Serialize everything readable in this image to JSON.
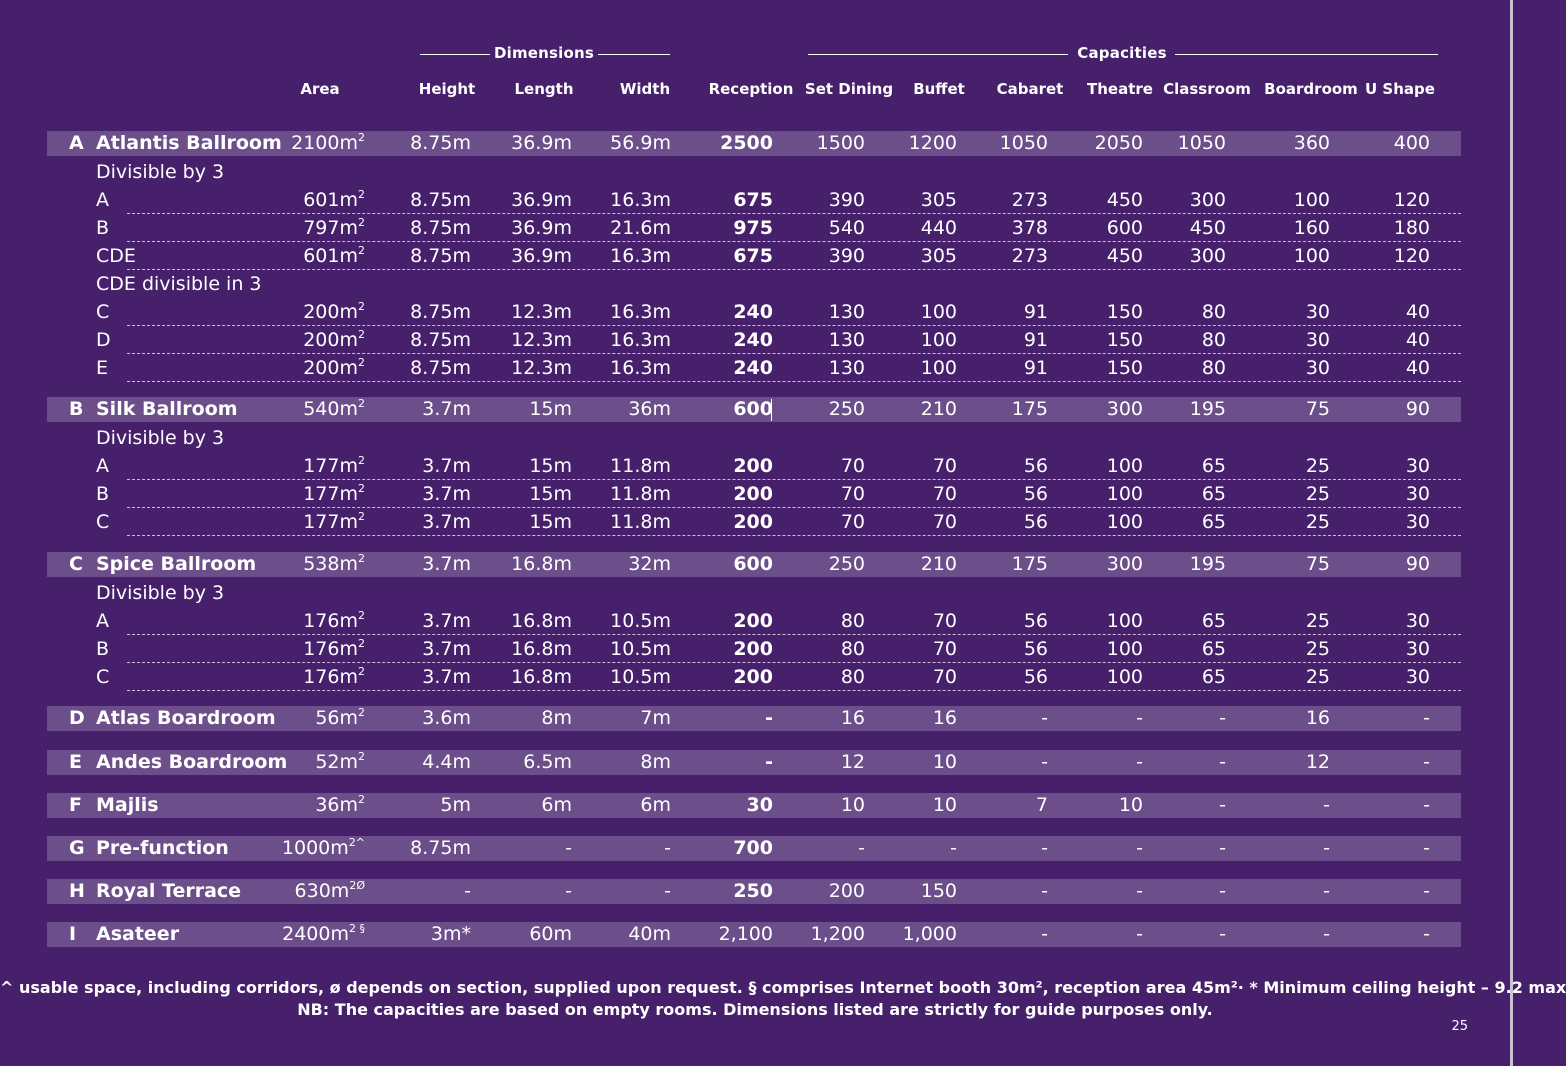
{
  "groups": {
    "dimensions": "Dimensions",
    "capacities": "Capacities"
  },
  "headers": [
    "Area",
    "Height",
    "Length",
    "Width",
    "Reception",
    "Set Dining",
    "Buffet",
    "Cabaret",
    "Theatre",
    "Classroom",
    "Boardroom",
    "U Shape"
  ],
  "rows": [
    {
      "type": "main",
      "letter": "A",
      "name": "Atlantis Ballroom",
      "area": "2100m",
      "area_sup": "2",
      "cells": [
        "8.75m",
        "36.9m",
        "56.9m",
        "2500",
        "1500",
        "1200",
        "1050",
        "2050",
        "1050",
        "360",
        "400"
      ]
    },
    {
      "type": "sub",
      "letter": "",
      "name": "Divisible by 3",
      "area": "",
      "area_sup": "",
      "cells": [
        "",
        "",
        "",
        "",
        "",
        "",
        "",
        "",
        "",
        "",
        ""
      ]
    },
    {
      "type": "sub",
      "letter": "",
      "name": "A",
      "area": "601m",
      "area_sup": "2",
      "cells": [
        "8.75m",
        "36.9m",
        "16.3m",
        "675",
        "390",
        "305",
        "273",
        "450",
        "300",
        "100",
        "120"
      ]
    },
    {
      "type": "sub",
      "letter": "",
      "name": "B",
      "area": "797m",
      "area_sup": "2",
      "cells": [
        "8.75m",
        "36.9m",
        "21.6m",
        "975",
        "540",
        "440",
        "378",
        "600",
        "450",
        "160",
        "180"
      ]
    },
    {
      "type": "sub",
      "letter": "",
      "name": "CDE",
      "area": "601m",
      "area_sup": "2",
      "cells": [
        "8.75m",
        "36.9m",
        "16.3m",
        "675",
        "390",
        "305",
        "273",
        "450",
        "300",
        "100",
        "120"
      ]
    },
    {
      "type": "sub",
      "letter": "",
      "name": "CDE divisible in 3",
      "area": "",
      "area_sup": "",
      "cells": [
        "",
        "",
        "",
        "",
        "",
        "",
        "",
        "",
        "",
        "",
        ""
      ]
    },
    {
      "type": "sub",
      "letter": "",
      "name": "C",
      "area": "200m",
      "area_sup": "2",
      "cells": [
        "8.75m",
        "12.3m",
        "16.3m",
        "240",
        "130",
        "100",
        "91",
        "150",
        "80",
        "30",
        "40"
      ]
    },
    {
      "type": "sub",
      "letter": "",
      "name": "D",
      "area": "200m",
      "area_sup": "2",
      "cells": [
        "8.75m",
        "12.3m",
        "16.3m",
        "240",
        "130",
        "100",
        "91",
        "150",
        "80",
        "30",
        "40"
      ]
    },
    {
      "type": "sub",
      "letter": "",
      "name": "E",
      "area": "200m",
      "area_sup": "2",
      "cells": [
        "8.75m",
        "12.3m",
        "16.3m",
        "240",
        "130",
        "100",
        "91",
        "150",
        "80",
        "30",
        "40"
      ]
    },
    {
      "type": "main",
      "letter": "B",
      "name": "Silk Ballroom",
      "area": "540m",
      "area_sup": "2",
      "cells": [
        "3.7m",
        "15m",
        "36m",
        "600",
        "250",
        "210",
        "175",
        "300",
        "195",
        "75",
        "90"
      ]
    },
    {
      "type": "sub",
      "letter": "",
      "name": "Divisible by 3",
      "area": "",
      "area_sup": "",
      "cells": [
        "",
        "",
        "",
        "",
        "",
        "",
        "",
        "",
        "",
        "",
        ""
      ]
    },
    {
      "type": "sub",
      "letter": "",
      "name": "A",
      "area": "177m",
      "area_sup": "2",
      "cells": [
        "3.7m",
        "15m",
        "11.8m",
        "200",
        "70",
        "70",
        "56",
        "100",
        "65",
        "25",
        "30"
      ]
    },
    {
      "type": "sub",
      "letter": "",
      "name": "B",
      "area": "177m",
      "area_sup": "2",
      "cells": [
        "3.7m",
        "15m",
        "11.8m",
        "200",
        "70",
        "70",
        "56",
        "100",
        "65",
        "25",
        "30"
      ]
    },
    {
      "type": "sub",
      "letter": "",
      "name": "C",
      "area": "177m",
      "area_sup": "2",
      "cells": [
        "3.7m",
        "15m",
        "11.8m",
        "200",
        "70",
        "70",
        "56",
        "100",
        "65",
        "25",
        "30"
      ]
    },
    {
      "type": "main",
      "letter": "C",
      "name": "Spice Ballroom",
      "area": "538m",
      "area_sup": "2",
      "cells": [
        "3.7m",
        "16.8m",
        "32m",
        "600",
        "250",
        "210",
        "175",
        "300",
        "195",
        "75",
        "90"
      ]
    },
    {
      "type": "sub",
      "letter": "",
      "name": "Divisible by 3",
      "area": "",
      "area_sup": "",
      "cells": [
        "",
        "",
        "",
        "",
        "",
        "",
        "",
        "",
        "",
        "",
        ""
      ]
    },
    {
      "type": "sub",
      "letter": "",
      "name": "A",
      "area": "176m",
      "area_sup": "2",
      "cells": [
        "3.7m",
        "16.8m",
        "10.5m",
        "200",
        "80",
        "70",
        "56",
        "100",
        "65",
        "25",
        "30"
      ]
    },
    {
      "type": "sub",
      "letter": "",
      "name": "B",
      "area": "176m",
      "area_sup": "2",
      "cells": [
        "3.7m",
        "16.8m",
        "10.5m",
        "200",
        "80",
        "70",
        "56",
        "100",
        "65",
        "25",
        "30"
      ]
    },
    {
      "type": "sub",
      "letter": "",
      "name": "C",
      "area": "176m",
      "area_sup": "2",
      "cells": [
        "3.7m",
        "16.8m",
        "10.5m",
        "200",
        "80",
        "70",
        "56",
        "100",
        "65",
        "25",
        "30"
      ]
    },
    {
      "type": "main",
      "letter": "D",
      "name": "Atlas Boardroom",
      "area": "56m",
      "area_sup": "2",
      "cells": [
        "3.6m",
        "8m",
        "7m",
        "-",
        "16",
        "16",
        "-",
        "-",
        "-",
        "16",
        "-"
      ]
    },
    {
      "type": "main",
      "letter": "E",
      "name": "Andes Boardroom",
      "area": "52m",
      "area_sup": "2",
      "cells": [
        "4.4m",
        "6.5m",
        "8m",
        "-",
        "12",
        "10",
        "-",
        "-",
        "-",
        "12",
        "-"
      ]
    },
    {
      "type": "main",
      "letter": "F",
      "name": "Majlis",
      "area": "36m",
      "area_sup": "2",
      "cells": [
        "5m",
        "6m",
        "6m",
        "30",
        "10",
        "10",
        "7",
        "10",
        "-",
        "-",
        "-"
      ]
    },
    {
      "type": "main",
      "letter": "G",
      "name": "Pre-function",
      "area": "1000m",
      "area_sup": "2^",
      "cells": [
        "8.75m",
        "-",
        "-",
        "700",
        "-",
        "-",
        "-",
        "-",
        "-",
        "-",
        "-"
      ]
    },
    {
      "type": "main",
      "letter": "H",
      "name": "Royal Terrace",
      "area": "630m",
      "area_sup": "2Ø",
      "cells": [
        "-",
        "-",
        "-",
        "250",
        "200",
        "150",
        "-",
        "-",
        "-",
        "-",
        "-"
      ]
    },
    {
      "type": "main",
      "letter": "I",
      "name": "Asateer",
      "area": "2400m",
      "area_sup": "2 §",
      "cells": [
        "3m*",
        "60m",
        "40m",
        "2,100",
        "1,200",
        "1,000",
        "-",
        "-",
        "-",
        "-",
        "-"
      ]
    }
  ],
  "footnotes": {
    "line1": "^ usable space, including corridors, ø depends on section, supplied upon request. § comprises Internet booth 30m², reception area 45m²· * Minimum ceiling height – 9.2 max",
    "line2": "NB: The capacities are based on empty rooms. Dimensions listed are strictly for guide purposes only."
  },
  "page_number": "25",
  "colors": {
    "background": "#46206b",
    "row_band": "#6c4f8a",
    "text": "#ffffff"
  }
}
